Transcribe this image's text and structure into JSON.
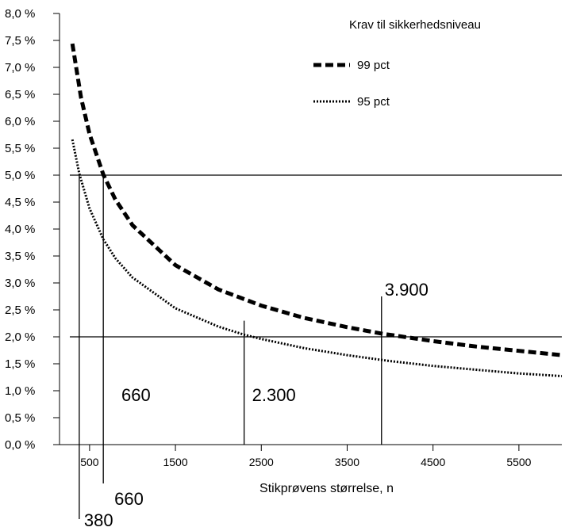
{
  "chart_data": {
    "type": "line",
    "xlabel": "Stikprøvens størrelse, n",
    "ylabel": "",
    "xlim": [
      150,
      6000
    ],
    "ylim": [
      0,
      8
    ],
    "xticks": [
      500,
      1500,
      2500,
      3500,
      4500,
      5500
    ],
    "xtick_labels": [
      "500",
      "1500",
      "2500",
      "3500",
      "4500",
      "5500"
    ],
    "yticks": [
      0,
      0.5,
      1,
      1.5,
      2,
      2.5,
      3,
      3.5,
      4,
      4.5,
      5,
      5.5,
      6,
      6.5,
      7,
      7.5,
      8
    ],
    "ytick_labels": [
      "0,0 %",
      "0,5 %",
      "1,0 %",
      "1,5 %",
      "2,0 %",
      "2,5 %",
      "3,0 %",
      "3,5 %",
      "4,0 %",
      "4,5 %",
      "5,0 %",
      "5,5 %",
      "6,0 %",
      "6,5 %",
      "7,0 %",
      "7,5 %",
      "8,0 %"
    ],
    "grid": false,
    "legend": {
      "title": "Krav til sikkerhedsniveau",
      "position": "top-right"
    },
    "series": [
      {
        "name": "99 pct",
        "style": "dashed",
        "x": [
          300,
          400,
          500,
          660,
          800,
          1000,
          1500,
          2000,
          2500,
          3000,
          3500,
          3900,
          4500,
          5000,
          5500,
          6000
        ],
        "y": [
          7.44,
          6.44,
          5.76,
          5.01,
          4.55,
          4.07,
          3.33,
          2.88,
          2.58,
          2.35,
          2.18,
          2.06,
          1.92,
          1.82,
          1.74,
          1.66
        ]
      },
      {
        "name": "95 pct",
        "style": "dotted",
        "x": [
          300,
          380,
          500,
          660,
          800,
          1000,
          1500,
          2000,
          2300,
          2500,
          3000,
          3500,
          4000,
          4500,
          5000,
          5500,
          6000
        ],
        "y": [
          5.66,
          5.03,
          4.38,
          3.81,
          3.46,
          3.1,
          2.53,
          2.19,
          2.04,
          1.96,
          1.79,
          1.66,
          1.55,
          1.46,
          1.39,
          1.32,
          1.27
        ]
      }
    ],
    "reference_lines": [
      {
        "axis": "y",
        "value": 5.0
      },
      {
        "axis": "y",
        "value": 2.0
      }
    ],
    "annotations": [
      {
        "label": "380",
        "x": 380,
        "y": 5.0
      },
      {
        "label": "660",
        "x": 660,
        "y": 5.0
      },
      {
        "label": "660",
        "x": 660,
        "y": 5.0,
        "placement": "inside"
      },
      {
        "label": "2.300",
        "x": 2300,
        "y": 2.0
      },
      {
        "label": "3.900",
        "x": 3900,
        "y": 2.0
      }
    ]
  }
}
